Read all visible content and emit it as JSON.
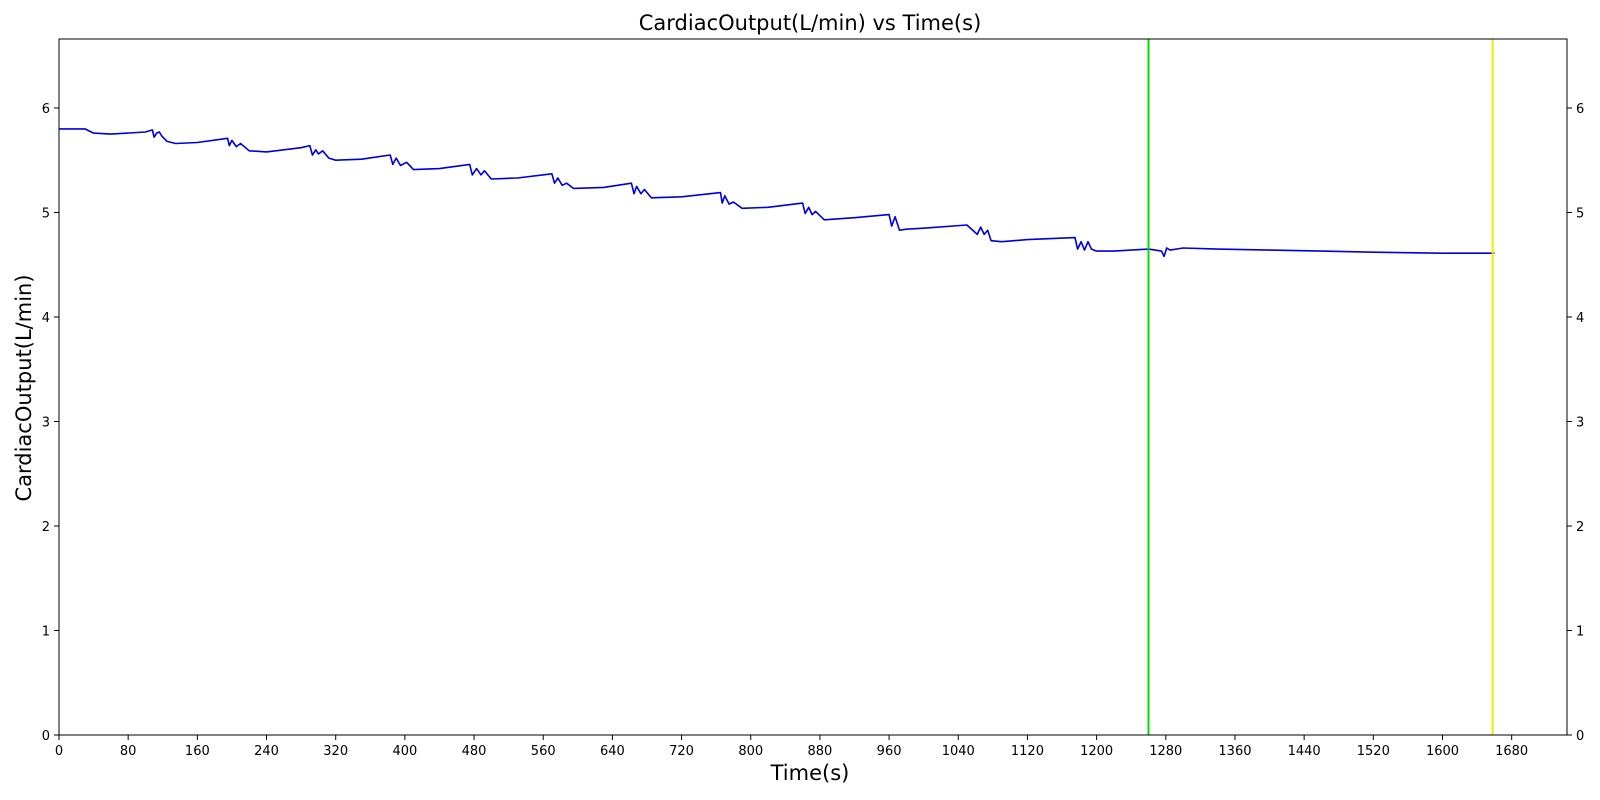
{
  "chart_data": {
    "type": "line",
    "title": "CardiacOutput(L/min) vs Time(s)",
    "xlabel": "Time(s)",
    "ylabel": "CardiacOutput(L/min)",
    "xlim": [
      0,
      1744
    ],
    "ylim": [
      0,
      6.66
    ],
    "x_ticks": [
      0,
      80,
      160,
      240,
      320,
      400,
      480,
      560,
      640,
      720,
      800,
      880,
      960,
      1040,
      1120,
      1200,
      1280,
      1360,
      1440,
      1520,
      1600,
      1680
    ],
    "y_ticks": [
      0,
      1,
      2,
      3,
      4,
      5,
      6
    ],
    "right_y_axis_mirrored": true,
    "grid": false,
    "series": [
      {
        "color": "#0000dd",
        "x": [
          0,
          30,
          40,
          60,
          100,
          108,
          110,
          113,
          116,
          119,
          125,
          135,
          160,
          195,
          197,
          200,
          205,
          210,
          220,
          240,
          280,
          290,
          293,
          297,
          300,
          305,
          312,
          320,
          350,
          383,
          386,
          390,
          395,
          402,
          410,
          440,
          475,
          478,
          483,
          488,
          492,
          500,
          530,
          570,
          573,
          577,
          582,
          587,
          595,
          630,
          662,
          665,
          668,
          673,
          677,
          685,
          720,
          765,
          767,
          770,
          775,
          780,
          790,
          820,
          860,
          863,
          867,
          871,
          875,
          885,
          920,
          960,
          963,
          967,
          972,
          980,
          1000,
          1050,
          1062,
          1066,
          1070,
          1074,
          1078,
          1090,
          1120,
          1175,
          1178,
          1182,
          1186,
          1190,
          1194,
          1200,
          1220,
          1240,
          1260,
          1275,
          1278,
          1281,
          1285,
          1300,
          1340,
          1400,
          1460,
          1520,
          1600,
          1660
        ],
        "y": [
          5.8,
          5.8,
          5.76,
          5.75,
          5.77,
          5.79,
          5.72,
          5.76,
          5.77,
          5.73,
          5.68,
          5.66,
          5.67,
          5.71,
          5.64,
          5.69,
          5.63,
          5.66,
          5.59,
          5.58,
          5.62,
          5.64,
          5.55,
          5.6,
          5.56,
          5.59,
          5.52,
          5.5,
          5.51,
          5.55,
          5.46,
          5.52,
          5.45,
          5.48,
          5.41,
          5.42,
          5.46,
          5.36,
          5.42,
          5.36,
          5.4,
          5.32,
          5.33,
          5.37,
          5.28,
          5.33,
          5.26,
          5.28,
          5.23,
          5.24,
          5.28,
          5.18,
          5.25,
          5.18,
          5.22,
          5.14,
          5.15,
          5.19,
          5.09,
          5.16,
          5.08,
          5.1,
          5.04,
          5.05,
          5.09,
          4.99,
          5.05,
          4.98,
          5.01,
          4.93,
          4.95,
          4.98,
          4.87,
          4.96,
          4.83,
          4.84,
          4.85,
          4.88,
          4.79,
          4.86,
          4.79,
          4.83,
          4.73,
          4.72,
          4.74,
          4.76,
          4.65,
          4.72,
          4.64,
          4.72,
          4.65,
          4.63,
          4.63,
          4.64,
          4.65,
          4.63,
          4.58,
          4.66,
          4.64,
          4.66,
          4.65,
          4.64,
          4.63,
          4.62,
          4.61,
          4.61
        ]
      }
    ],
    "vertical_lines": [
      {
        "x": 1260,
        "color": "#00dd00"
      },
      {
        "x": 1658,
        "color": "#eeee00"
      }
    ]
  }
}
